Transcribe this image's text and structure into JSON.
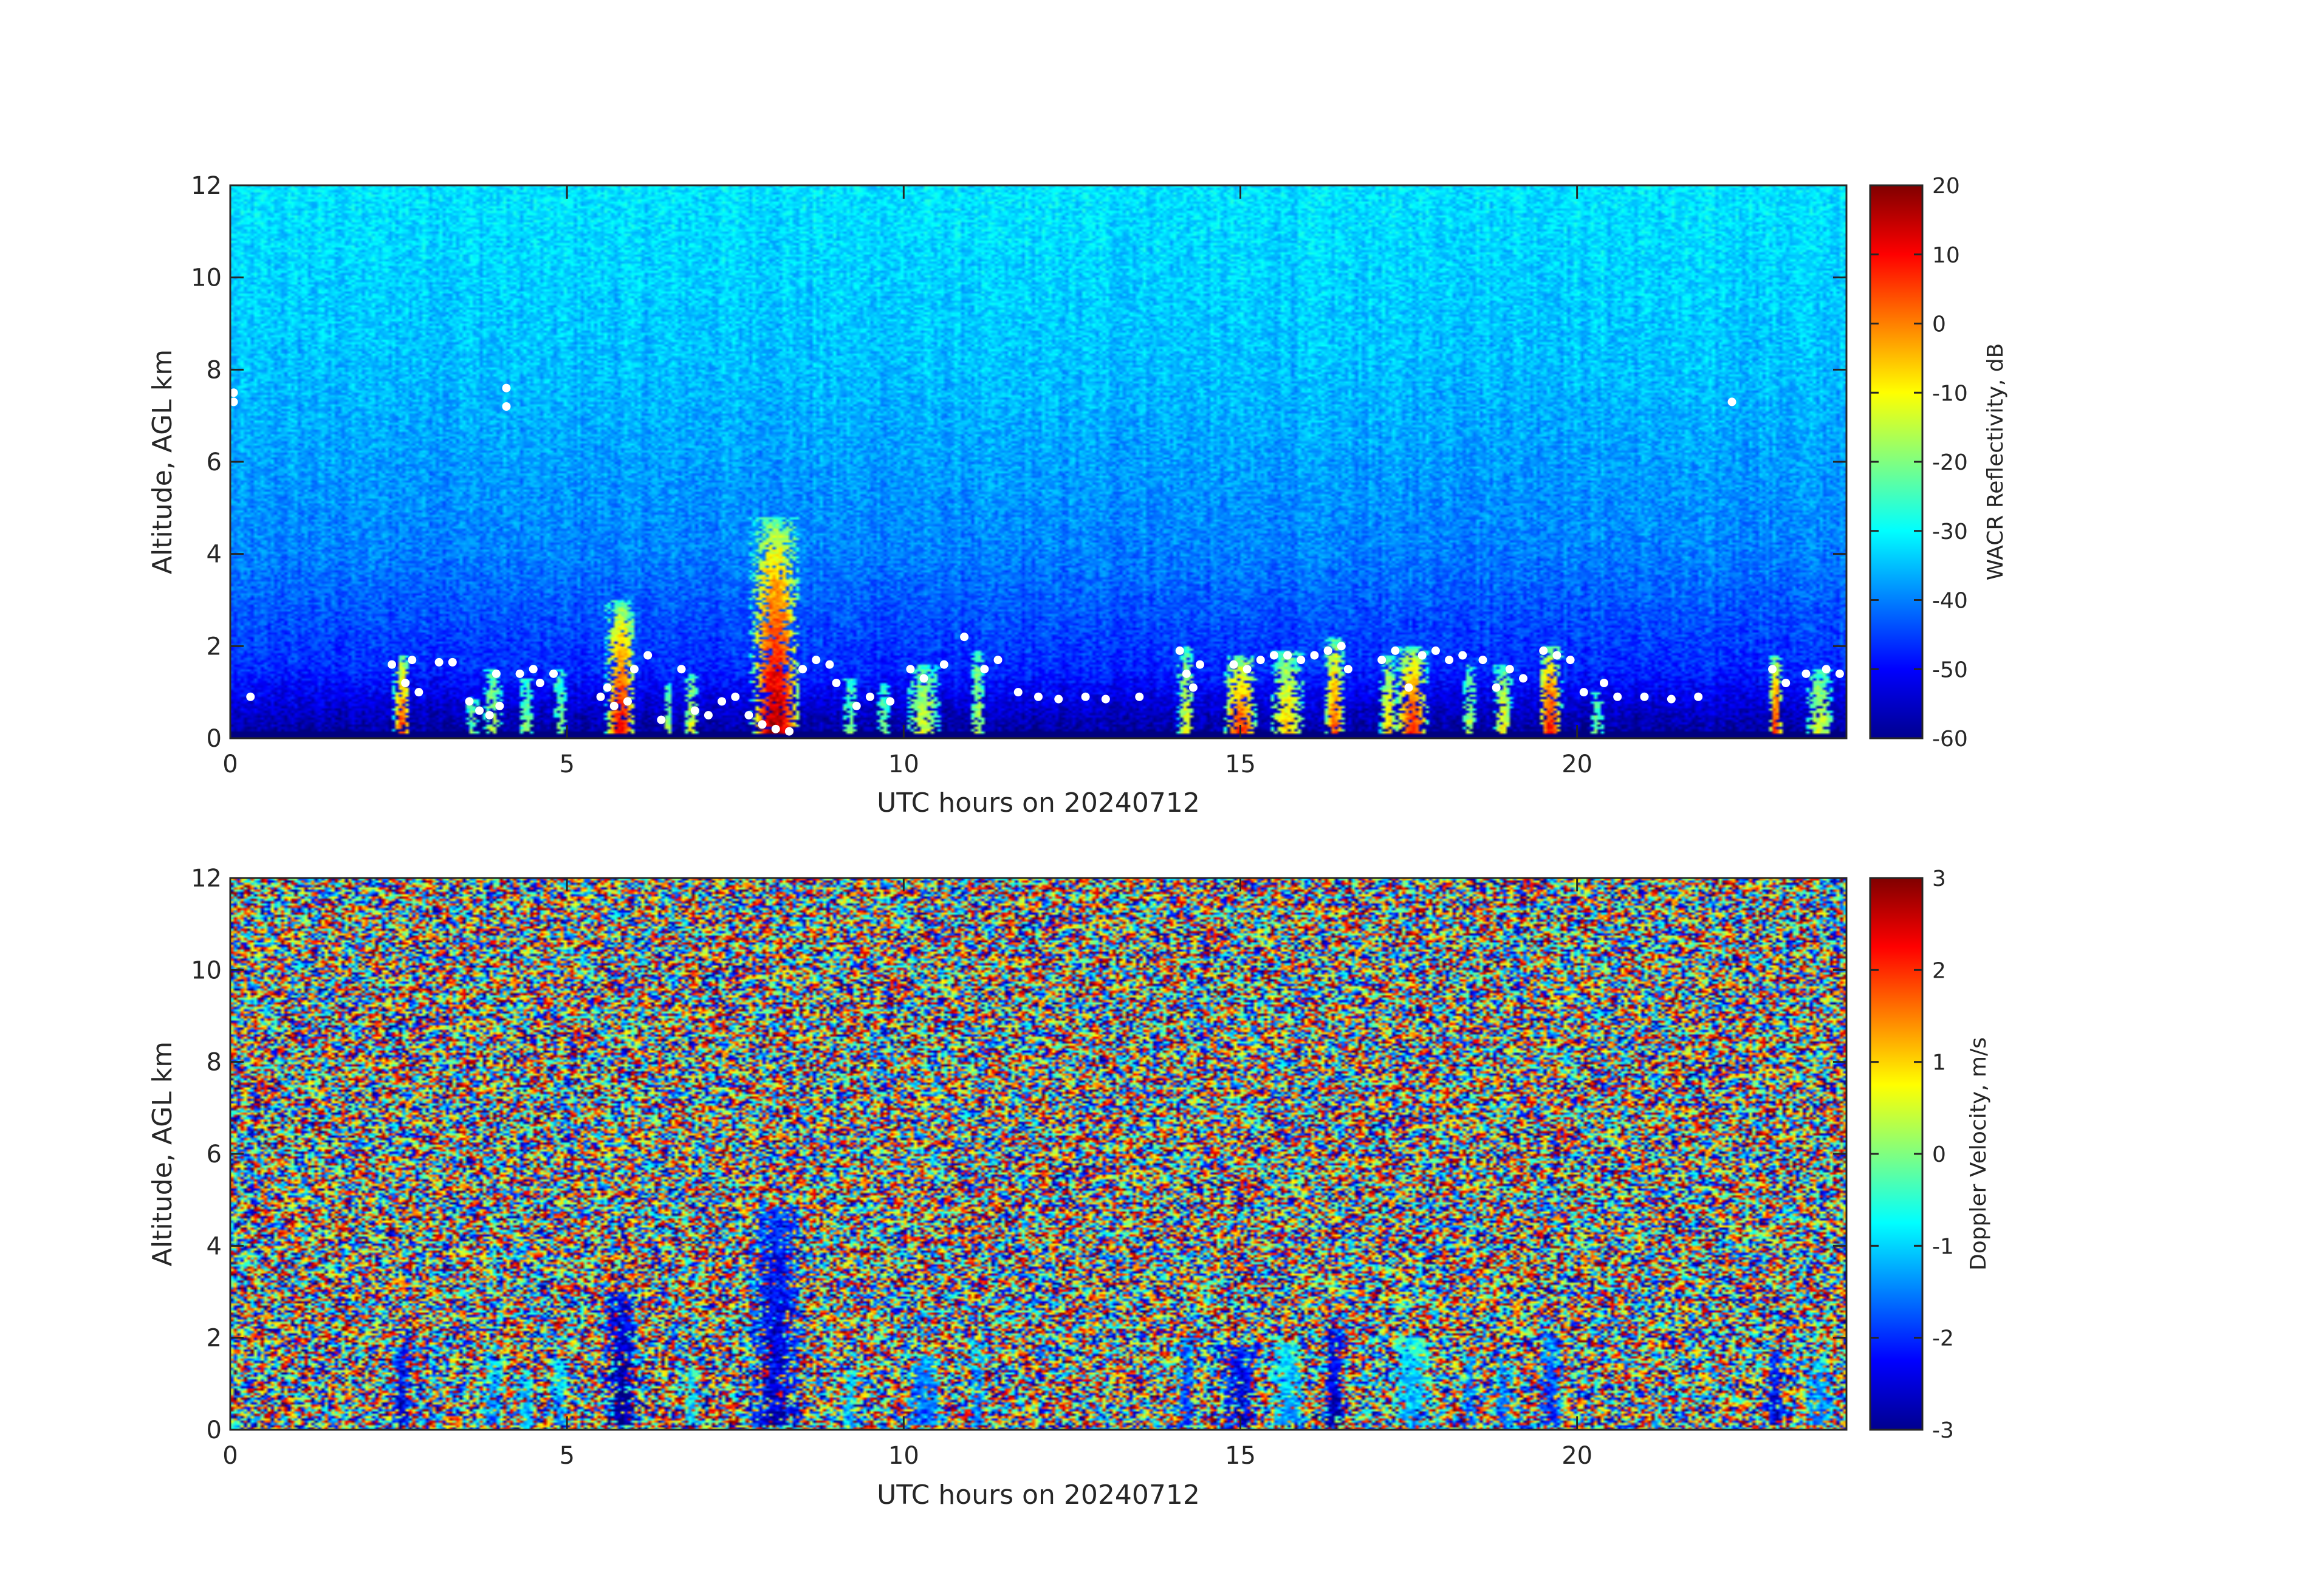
{
  "chart_data": [
    {
      "type": "heatmap",
      "variable": "reflectivity",
      "xlabel": "UTC hours on 20240712",
      "ylabel": "Altitude, AGL km",
      "xlim": [
        0,
        24
      ],
      "ylim": [
        0,
        12
      ],
      "xticks": [
        0,
        5,
        10,
        15,
        20
      ],
      "yticks": [
        0,
        2,
        4,
        6,
        8,
        10,
        12
      ],
      "colorbar": {
        "label": "WACR Reflectivity, dB",
        "range": [
          -60,
          20
        ],
        "ticks": [
          -60,
          -50,
          -40,
          -30,
          -20,
          -10,
          0,
          10,
          20
        ],
        "colormap": "jet"
      },
      "background_gradient": [
        {
          "altitude_km": 0,
          "value": -58
        },
        {
          "altitude_km": 0.5,
          "value": -55
        },
        {
          "altitude_km": 1.5,
          "value": -47
        },
        {
          "altitude_km": 4,
          "value": -40
        },
        {
          "altitude_km": 8,
          "value": -35
        },
        {
          "altitude_km": 12,
          "value": -32
        }
      ],
      "cloud_columns": [
        {
          "hour": 2.55,
          "width_h": 0.25,
          "top_km": 1.8,
          "peak": 8
        },
        {
          "hour": 3.6,
          "width_h": 0.2,
          "top_km": 0.9,
          "peak": -20
        },
        {
          "hour": 3.9,
          "width_h": 0.25,
          "top_km": 1.5,
          "peak": -15
        },
        {
          "hour": 4.4,
          "width_h": 0.2,
          "top_km": 1.3,
          "peak": -18
        },
        {
          "hour": 4.9,
          "width_h": 0.2,
          "top_km": 1.5,
          "peak": -20
        },
        {
          "hour": 5.8,
          "width_h": 0.45,
          "top_km": 3.0,
          "peak": 12
        },
        {
          "hour": 6.5,
          "width_h": 0.15,
          "top_km": 1.2,
          "peak": -15
        },
        {
          "hour": 6.85,
          "width_h": 0.2,
          "top_km": 1.4,
          "peak": -10
        },
        {
          "hour": 8.1,
          "width_h": 0.75,
          "top_km": 4.8,
          "peak": 18
        },
        {
          "hour": 9.2,
          "width_h": 0.2,
          "top_km": 1.3,
          "peak": -20
        },
        {
          "hour": 9.7,
          "width_h": 0.2,
          "top_km": 1.2,
          "peak": -20
        },
        {
          "hour": 10.3,
          "width_h": 0.5,
          "top_km": 1.6,
          "peak": -12
        },
        {
          "hour": 11.1,
          "width_h": 0.2,
          "top_km": 1.9,
          "peak": -15
        },
        {
          "hour": 14.2,
          "width_h": 0.25,
          "top_km": 2.0,
          "peak": -10
        },
        {
          "hour": 15.0,
          "width_h": 0.5,
          "top_km": 1.8,
          "peak": 8
        },
        {
          "hour": 15.7,
          "width_h": 0.5,
          "top_km": 1.9,
          "peak": -5
        },
        {
          "hour": 16.4,
          "width_h": 0.3,
          "top_km": 2.2,
          "peak": 5
        },
        {
          "hour": 17.2,
          "width_h": 0.25,
          "top_km": 1.8,
          "peak": -5
        },
        {
          "hour": 17.55,
          "width_h": 0.5,
          "top_km": 2.0,
          "peak": 10
        },
        {
          "hour": 18.4,
          "width_h": 0.2,
          "top_km": 1.6,
          "peak": -15
        },
        {
          "hour": 18.9,
          "width_h": 0.25,
          "top_km": 1.6,
          "peak": -8
        },
        {
          "hour": 19.6,
          "width_h": 0.35,
          "top_km": 2.0,
          "peak": 12
        },
        {
          "hour": 20.3,
          "width_h": 0.2,
          "top_km": 1.0,
          "peak": -20
        },
        {
          "hour": 22.95,
          "width_h": 0.2,
          "top_km": 1.8,
          "peak": 10
        },
        {
          "hour": 23.6,
          "width_h": 0.4,
          "top_km": 1.5,
          "peak": -12
        }
      ],
      "markers": [
        {
          "hour": 0.05,
          "km": 7.5
        },
        {
          "hour": 0.05,
          "km": 7.3
        },
        {
          "hour": 0.3,
          "km": 0.9
        },
        {
          "hour": 4.1,
          "km": 7.6
        },
        {
          "hour": 4.1,
          "km": 7.2
        },
        {
          "hour": 22.3,
          "km": 7.3
        },
        {
          "hour": 2.4,
          "km": 1.6
        },
        {
          "hour": 2.7,
          "km": 1.7
        },
        {
          "hour": 2.6,
          "km": 1.2
        },
        {
          "hour": 2.8,
          "km": 1.0
        },
        {
          "hour": 3.1,
          "km": 1.65
        },
        {
          "hour": 3.3,
          "km": 1.65
        },
        {
          "hour": 3.55,
          "km": 0.8
        },
        {
          "hour": 3.7,
          "km": 0.6
        },
        {
          "hour": 3.85,
          "km": 0.5
        },
        {
          "hour": 3.95,
          "km": 1.4
        },
        {
          "hour": 4.0,
          "km": 0.7
        },
        {
          "hour": 4.3,
          "km": 1.4
        },
        {
          "hour": 4.5,
          "km": 1.5
        },
        {
          "hour": 4.8,
          "km": 1.4
        },
        {
          "hour": 4.6,
          "km": 1.2
        },
        {
          "hour": 5.5,
          "km": 0.9
        },
        {
          "hour": 5.7,
          "km": 0.7
        },
        {
          "hour": 5.9,
          "km": 0.8
        },
        {
          "hour": 6.0,
          "km": 1.5
        },
        {
          "hour": 6.2,
          "km": 1.8
        },
        {
          "hour": 5.6,
          "km": 1.1
        },
        {
          "hour": 6.4,
          "km": 0.4
        },
        {
          "hour": 6.7,
          "km": 1.5
        },
        {
          "hour": 6.9,
          "km": 0.6
        },
        {
          "hour": 7.1,
          "km": 0.5
        },
        {
          "hour": 7.3,
          "km": 0.8
        },
        {
          "hour": 7.5,
          "km": 0.9
        },
        {
          "hour": 7.7,
          "km": 0.5
        },
        {
          "hour": 7.9,
          "km": 0.3
        },
        {
          "hour": 8.1,
          "km": 0.2
        },
        {
          "hour": 8.3,
          "km": 0.15
        },
        {
          "hour": 8.5,
          "km": 1.5
        },
        {
          "hour": 8.7,
          "km": 1.7
        },
        {
          "hour": 8.9,
          "km": 1.6
        },
        {
          "hour": 9.0,
          "km": 1.2
        },
        {
          "hour": 9.3,
          "km": 0.7
        },
        {
          "hour": 9.5,
          "km": 0.9
        },
        {
          "hour": 9.8,
          "km": 0.8
        },
        {
          "hour": 10.1,
          "km": 1.5
        },
        {
          "hour": 10.3,
          "km": 1.3
        },
        {
          "hour": 10.6,
          "km": 1.6
        },
        {
          "hour": 10.9,
          "km": 2.2
        },
        {
          "hour": 11.2,
          "km": 1.5
        },
        {
          "hour": 11.4,
          "km": 1.7
        },
        {
          "hour": 11.7,
          "km": 1.0
        },
        {
          "hour": 12.0,
          "km": 0.9
        },
        {
          "hour": 12.3,
          "km": 0.85
        },
        {
          "hour": 12.7,
          "km": 0.9
        },
        {
          "hour": 13.0,
          "km": 0.85
        },
        {
          "hour": 13.5,
          "km": 0.9
        },
        {
          "hour": 14.1,
          "km": 1.9
        },
        {
          "hour": 14.2,
          "km": 1.4
        },
        {
          "hour": 14.3,
          "km": 1.1
        },
        {
          "hour": 14.4,
          "km": 1.6
        },
        {
          "hour": 14.9,
          "km": 1.6
        },
        {
          "hour": 15.1,
          "km": 1.5
        },
        {
          "hour": 15.3,
          "km": 1.7
        },
        {
          "hour": 15.5,
          "km": 1.8
        },
        {
          "hour": 15.7,
          "km": 1.8
        },
        {
          "hour": 15.9,
          "km": 1.7
        },
        {
          "hour": 16.1,
          "km": 1.8
        },
        {
          "hour": 16.3,
          "km": 1.9
        },
        {
          "hour": 16.5,
          "km": 2.0
        },
        {
          "hour": 16.6,
          "km": 1.5
        },
        {
          "hour": 17.1,
          "km": 1.7
        },
        {
          "hour": 17.3,
          "km": 1.9
        },
        {
          "hour": 17.5,
          "km": 1.1
        },
        {
          "hour": 17.7,
          "km": 1.8
        },
        {
          "hour": 17.9,
          "km": 1.9
        },
        {
          "hour": 18.1,
          "km": 1.7
        },
        {
          "hour": 18.3,
          "km": 1.8
        },
        {
          "hour": 18.6,
          "km": 1.7
        },
        {
          "hour": 18.8,
          "km": 1.1
        },
        {
          "hour": 19.0,
          "km": 1.5
        },
        {
          "hour": 19.2,
          "km": 1.3
        },
        {
          "hour": 19.5,
          "km": 1.9
        },
        {
          "hour": 19.7,
          "km": 1.8
        },
        {
          "hour": 19.9,
          "km": 1.7
        },
        {
          "hour": 20.1,
          "km": 1.0
        },
        {
          "hour": 20.4,
          "km": 1.2
        },
        {
          "hour": 20.6,
          "km": 0.9
        },
        {
          "hour": 21.0,
          "km": 0.9
        },
        {
          "hour": 21.4,
          "km": 0.85
        },
        {
          "hour": 21.8,
          "km": 0.9
        },
        {
          "hour": 22.9,
          "km": 1.5
        },
        {
          "hour": 23.1,
          "km": 1.2
        },
        {
          "hour": 23.4,
          "km": 1.4
        },
        {
          "hour": 23.7,
          "km": 1.5
        },
        {
          "hour": 23.9,
          "km": 1.4
        }
      ]
    },
    {
      "type": "heatmap",
      "variable": "doppler_velocity",
      "xlabel": "UTC hours on 20240712",
      "ylabel": "Altitude, AGL km",
      "xlim": [
        0,
        24
      ],
      "ylim": [
        0,
        12
      ],
      "xticks": [
        0,
        5,
        10,
        15,
        20
      ],
      "yticks": [
        0,
        2,
        4,
        6,
        8,
        10,
        12
      ],
      "colorbar": {
        "label": "Doppler Velocity, m/s",
        "range": [
          -3,
          3
        ],
        "ticks": [
          -3,
          -2,
          -1,
          0,
          1,
          2,
          3
        ],
        "colormap": "jet"
      },
      "background": "uniform random noise between -3 and 3 m/s",
      "cloud_columns": [
        {
          "hour": 2.55,
          "width_h": 0.25,
          "top_km": 1.8,
          "velocity": -1.8
        },
        {
          "hour": 3.9,
          "width_h": 0.25,
          "top_km": 1.5,
          "velocity": -0.8
        },
        {
          "hour": 4.4,
          "width_h": 0.2,
          "top_km": 1.3,
          "velocity": -0.5
        },
        {
          "hour": 4.9,
          "width_h": 0.2,
          "top_km": 1.5,
          "velocity": -0.5
        },
        {
          "hour": 5.8,
          "width_h": 0.45,
          "top_km": 3.0,
          "velocity": -2.2
        },
        {
          "hour": 6.85,
          "width_h": 0.2,
          "top_km": 1.4,
          "velocity": -0.3
        },
        {
          "hour": 8.1,
          "width_h": 0.75,
          "top_km": 4.8,
          "velocity": -1.8
        },
        {
          "hour": 9.2,
          "width_h": 0.2,
          "top_km": 1.3,
          "velocity": -0.5
        },
        {
          "hour": 10.3,
          "width_h": 0.5,
          "top_km": 1.6,
          "velocity": -1.0
        },
        {
          "hour": 11.1,
          "width_h": 0.2,
          "top_km": 1.9,
          "velocity": -0.8
        },
        {
          "hour": 14.2,
          "width_h": 0.25,
          "top_km": 2.0,
          "velocity": -1.2
        },
        {
          "hour": 15.0,
          "width_h": 0.5,
          "top_km": 1.8,
          "velocity": -1.8
        },
        {
          "hour": 15.7,
          "width_h": 0.5,
          "top_km": 1.9,
          "velocity": -0.6
        },
        {
          "hour": 16.4,
          "width_h": 0.3,
          "top_km": 2.2,
          "velocity": -2.0
        },
        {
          "hour": 17.55,
          "width_h": 0.6,
          "top_km": 2.0,
          "velocity": -0.5
        },
        {
          "hour": 18.4,
          "width_h": 0.2,
          "top_km": 1.6,
          "velocity": -1.0
        },
        {
          "hour": 18.9,
          "width_h": 0.25,
          "top_km": 1.6,
          "velocity": -1.0
        },
        {
          "hour": 19.6,
          "width_h": 0.35,
          "top_km": 2.0,
          "velocity": -1.3
        },
        {
          "hour": 22.95,
          "width_h": 0.2,
          "top_km": 1.8,
          "velocity": -1.8
        },
        {
          "hour": 23.6,
          "width_h": 0.4,
          "top_km": 1.5,
          "velocity": -0.8
        }
      ]
    }
  ]
}
